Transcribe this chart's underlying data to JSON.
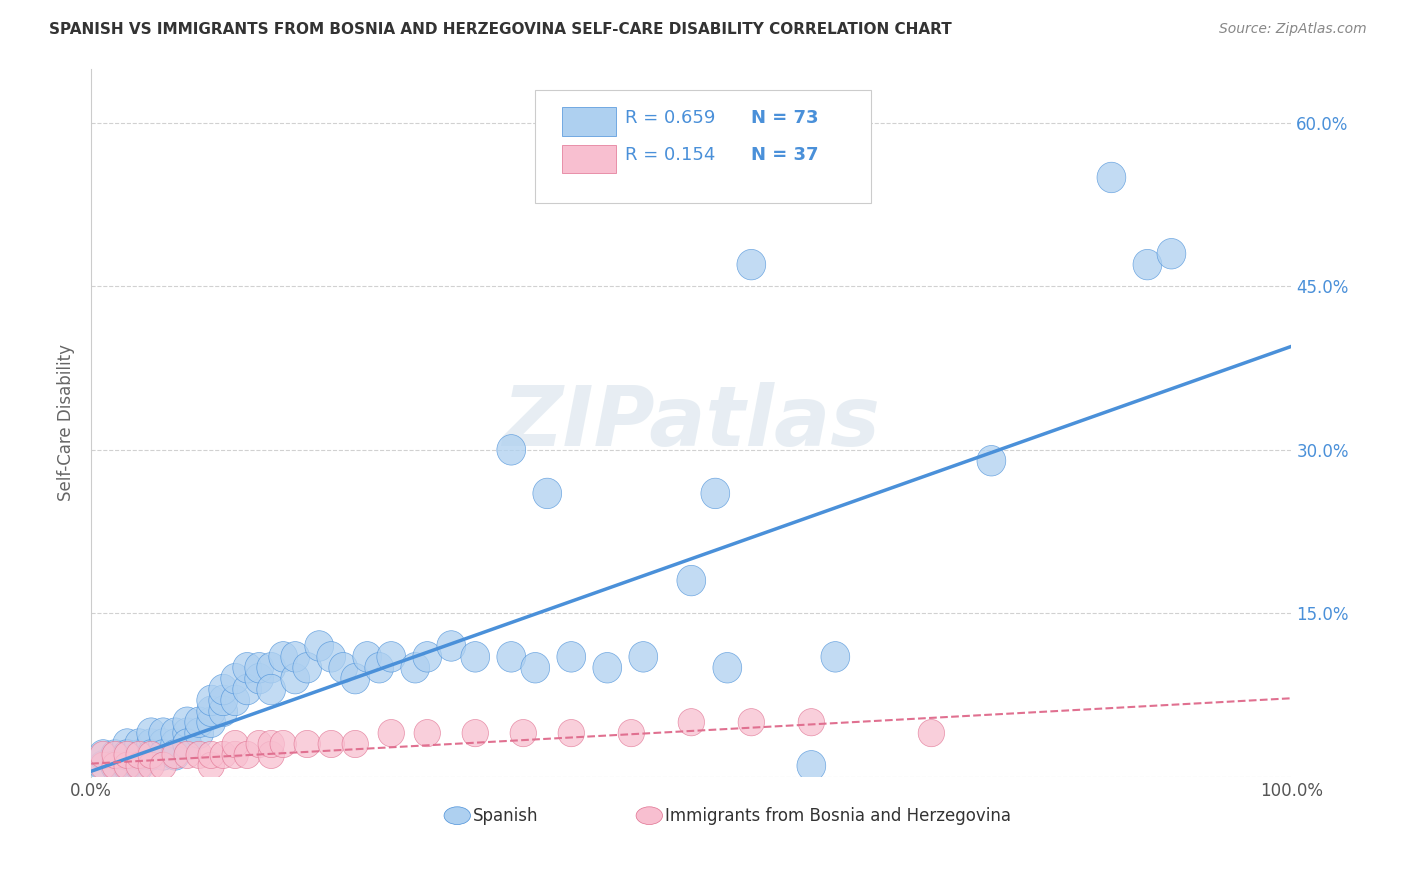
{
  "title": "SPANISH VS IMMIGRANTS FROM BOSNIA AND HERZEGOVINA SELF-CARE DISABILITY CORRELATION CHART",
  "source": "Source: ZipAtlas.com",
  "ylabel": "Self-Care Disability",
  "xlim": [
    0.0,
    1.0
  ],
  "ylim": [
    0.0,
    0.65
  ],
  "xticks": [
    0.0,
    0.25,
    0.5,
    0.75,
    1.0
  ],
  "xtick_labels": [
    "0.0%",
    "",
    "",
    "",
    "100.0%"
  ],
  "yticks": [
    0.0,
    0.15,
    0.3,
    0.45,
    0.6
  ],
  "ytick_labels": [
    "",
    "15.0%",
    "30.0%",
    "45.0%",
    "60.0%"
  ],
  "watermark": "ZIPatlas",
  "legend_r1": "0.659",
  "legend_n1": "73",
  "legend_r2": "0.154",
  "legend_n2": "37",
  "blue_color": "#aed0f0",
  "pink_color": "#f8bfd0",
  "line_blue": "#4a90d9",
  "line_pink": "#e07090",
  "grid_color": "#cccccc",
  "title_color": "#333333",
  "axis_label_color": "#666666",
  "tick_color_right": "#4a90d9",
  "spanish_x": [
    0.01,
    0.01,
    0.02,
    0.02,
    0.02,
    0.03,
    0.03,
    0.03,
    0.03,
    0.04,
    0.04,
    0.04,
    0.05,
    0.05,
    0.05,
    0.05,
    0.06,
    0.06,
    0.06,
    0.07,
    0.07,
    0.07,
    0.08,
    0.08,
    0.08,
    0.09,
    0.09,
    0.1,
    0.1,
    0.1,
    0.11,
    0.11,
    0.11,
    0.12,
    0.12,
    0.13,
    0.13,
    0.14,
    0.14,
    0.15,
    0.15,
    0.16,
    0.17,
    0.17,
    0.18,
    0.19,
    0.2,
    0.21,
    0.22,
    0.23,
    0.24,
    0.25,
    0.27,
    0.28,
    0.3,
    0.32,
    0.35,
    0.37,
    0.4,
    0.43,
    0.46,
    0.5,
    0.53,
    0.6,
    0.75,
    0.85,
    0.88,
    0.52,
    0.35,
    0.38,
    0.55,
    0.62,
    0.9
  ],
  "spanish_y": [
    0.01,
    0.02,
    0.01,
    0.02,
    0.01,
    0.01,
    0.02,
    0.03,
    0.02,
    0.01,
    0.02,
    0.03,
    0.02,
    0.03,
    0.04,
    0.02,
    0.03,
    0.04,
    0.02,
    0.03,
    0.04,
    0.02,
    0.04,
    0.05,
    0.03,
    0.04,
    0.05,
    0.05,
    0.06,
    0.07,
    0.06,
    0.07,
    0.08,
    0.07,
    0.09,
    0.08,
    0.1,
    0.09,
    0.1,
    0.1,
    0.08,
    0.11,
    0.09,
    0.11,
    0.1,
    0.12,
    0.11,
    0.1,
    0.09,
    0.11,
    0.1,
    0.11,
    0.1,
    0.11,
    0.12,
    0.11,
    0.11,
    0.1,
    0.11,
    0.1,
    0.11,
    0.18,
    0.1,
    0.01,
    0.29,
    0.55,
    0.47,
    0.26,
    0.3,
    0.26,
    0.47,
    0.11,
    0.48
  ],
  "bosnia_x": [
    0.01,
    0.01,
    0.02,
    0.02,
    0.03,
    0.03,
    0.04,
    0.04,
    0.05,
    0.05,
    0.06,
    0.07,
    0.08,
    0.09,
    0.1,
    0.1,
    0.11,
    0.12,
    0.12,
    0.13,
    0.14,
    0.15,
    0.15,
    0.16,
    0.18,
    0.2,
    0.22,
    0.25,
    0.28,
    0.32,
    0.36,
    0.4,
    0.45,
    0.5,
    0.55,
    0.6,
    0.7
  ],
  "bosnia_y": [
    0.01,
    0.02,
    0.01,
    0.02,
    0.01,
    0.02,
    0.01,
    0.02,
    0.01,
    0.02,
    0.01,
    0.02,
    0.02,
    0.02,
    0.01,
    0.02,
    0.02,
    0.02,
    0.03,
    0.02,
    0.03,
    0.02,
    0.03,
    0.03,
    0.03,
    0.03,
    0.03,
    0.04,
    0.04,
    0.04,
    0.04,
    0.04,
    0.04,
    0.05,
    0.05,
    0.05,
    0.04
  ],
  "spanish_trend_x": [
    0.0,
    1.0
  ],
  "spanish_trend_y": [
    0.005,
    0.395
  ],
  "bosnia_trend_x": [
    0.0,
    1.0
  ],
  "bosnia_trend_y": [
    0.012,
    0.072
  ],
  "background_color": "#ffffff"
}
